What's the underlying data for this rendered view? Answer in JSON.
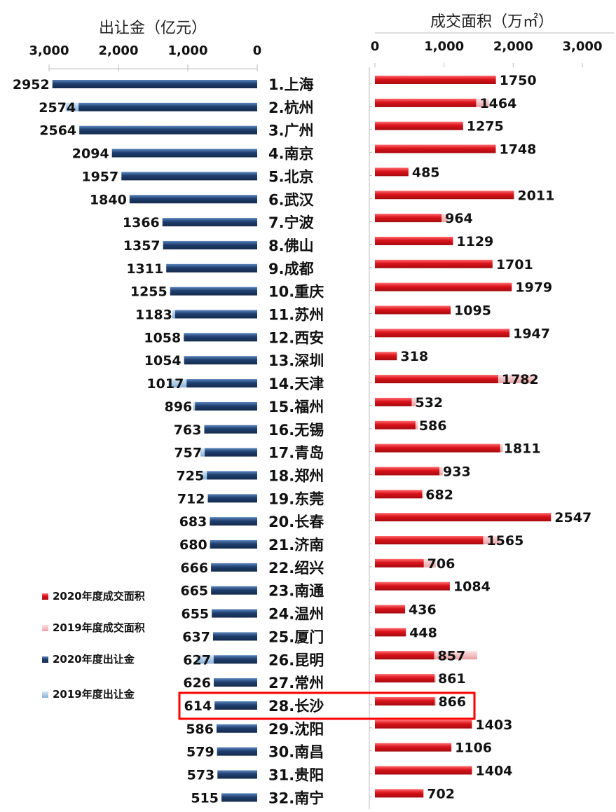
{
  "chart_data": [
    {
      "type": "bar",
      "orientation": "horizontal",
      "reversed_axis": true,
      "title": "出让金（亿元）",
      "xlim": [
        0,
        3000
      ],
      "ticks": [
        "3,000",
        "2,000",
        "1,000",
        "0"
      ],
      "tick_values": [
        3000,
        2000,
        1000,
        0
      ],
      "categories": [
        "1.上海",
        "2.杭州",
        "3.广州",
        "4.南京",
        "5.北京",
        "6.武汉",
        "7.宁波",
        "8.佛山",
        "9.成都",
        "10.重庆",
        "11.苏州",
        "12.西安",
        "13.深圳",
        "14.天津",
        "15.福州",
        "16.无锡",
        "17.青岛",
        "18.郑州",
        "19.东莞",
        "20.长春",
        "21.济南",
        "22.绍兴",
        "23.南通",
        "24.温州",
        "25.厦门",
        "26.昆明",
        "27.常州",
        "28.长沙",
        "29.沈阳",
        "30.南昌",
        "31.贵阳",
        "32.南宁"
      ],
      "series": [
        {
          "name": "2020年度出让金",
          "values": [
            2952,
            2574,
            2564,
            2094,
            1957,
            1840,
            1366,
            1357,
            1311,
            1255,
            1183,
            1058,
            1054,
            1017,
            896,
            763,
            757,
            725,
            712,
            683,
            680,
            666,
            665,
            655,
            637,
            627,
            626,
            614,
            586,
            579,
            573,
            515
          ]
        },
        {
          "name": "2019年度出让金",
          "values": [
            2952,
            2760,
            2564,
            2094,
            1957,
            1840,
            1366,
            1357,
            1311,
            1255,
            1230,
            1058,
            1054,
            1280,
            920,
            763,
            820,
            800,
            712,
            683,
            680,
            666,
            665,
            655,
            637,
            880,
            626,
            614,
            586,
            579,
            573,
            515
          ]
        }
      ],
      "labels": [
        "2952",
        "2574",
        "2564",
        "2094",
        "1957",
        "1840",
        "1366",
        "1357",
        "1311",
        "1255",
        "1183",
        "1058",
        "1054",
        "1017",
        "896",
        "763",
        "757",
        "725",
        "712",
        "683",
        "680",
        "666",
        "665",
        "655",
        "637",
        "627",
        "626",
        "614",
        "586",
        "579",
        "573",
        "515"
      ]
    },
    {
      "type": "bar",
      "orientation": "horizontal",
      "title": "成交面积（万㎡）",
      "xlim": [
        0,
        3000
      ],
      "ticks": [
        "0",
        "1,000",
        "2,000",
        "3,000"
      ],
      "tick_values": [
        0,
        1000,
        2000,
        3000
      ],
      "series": [
        {
          "name": "2020年度成交面积",
          "values": [
            1750,
            1464,
            1275,
            1748,
            485,
            2011,
            964,
            1129,
            1701,
            1979,
            1095,
            1947,
            318,
            1782,
            532,
            586,
            1811,
            933,
            682,
            2547,
            1565,
            706,
            1084,
            436,
            448,
            857,
            861,
            866,
            1403,
            1106,
            1404,
            702
          ]
        },
        {
          "name": "2019年度成交面积",
          "values": [
            1750,
            1650,
            1275,
            1748,
            485,
            2011,
            1050,
            1129,
            1701,
            1979,
            1095,
            1947,
            318,
            2310,
            600,
            620,
            1850,
            980,
            700,
            2547,
            1820,
            880,
            1084,
            436,
            448,
            1480,
            880,
            880,
            1403,
            1106,
            1404,
            702
          ]
        }
      ],
      "labels": [
        "1750",
        "1464",
        "1275",
        "1748",
        "485",
        "2011",
        "964",
        "1129",
        "1701",
        "1979",
        "1095",
        "1947",
        "318",
        "1782",
        "532",
        "586",
        "1811",
        "933",
        "682",
        "2547",
        "1565",
        "706",
        "1084",
        "436",
        "448",
        "857",
        "861",
        "866",
        "1403",
        "1106",
        "1404",
        "702"
      ]
    }
  ],
  "legend": [
    {
      "label": "2020年度成交面积",
      "color": "#e0141b"
    },
    {
      "label": "2019年度成交面积",
      "color": "#eeb1b3"
    },
    {
      "label": "2020年度出让金",
      "color": "#1f3f6e"
    },
    {
      "label": "2019年度出让金",
      "color": "#9ec3e3"
    }
  ],
  "highlight": {
    "row": 27,
    "color": "#ff0000"
  },
  "colors": {
    "navy": "#1f3f6e",
    "navy_light": "#3a6aa6",
    "lightblue": "#9ec3e3",
    "red": "#d31016",
    "red_light": "#ff4a4f",
    "pink": "#eeb1b3"
  }
}
